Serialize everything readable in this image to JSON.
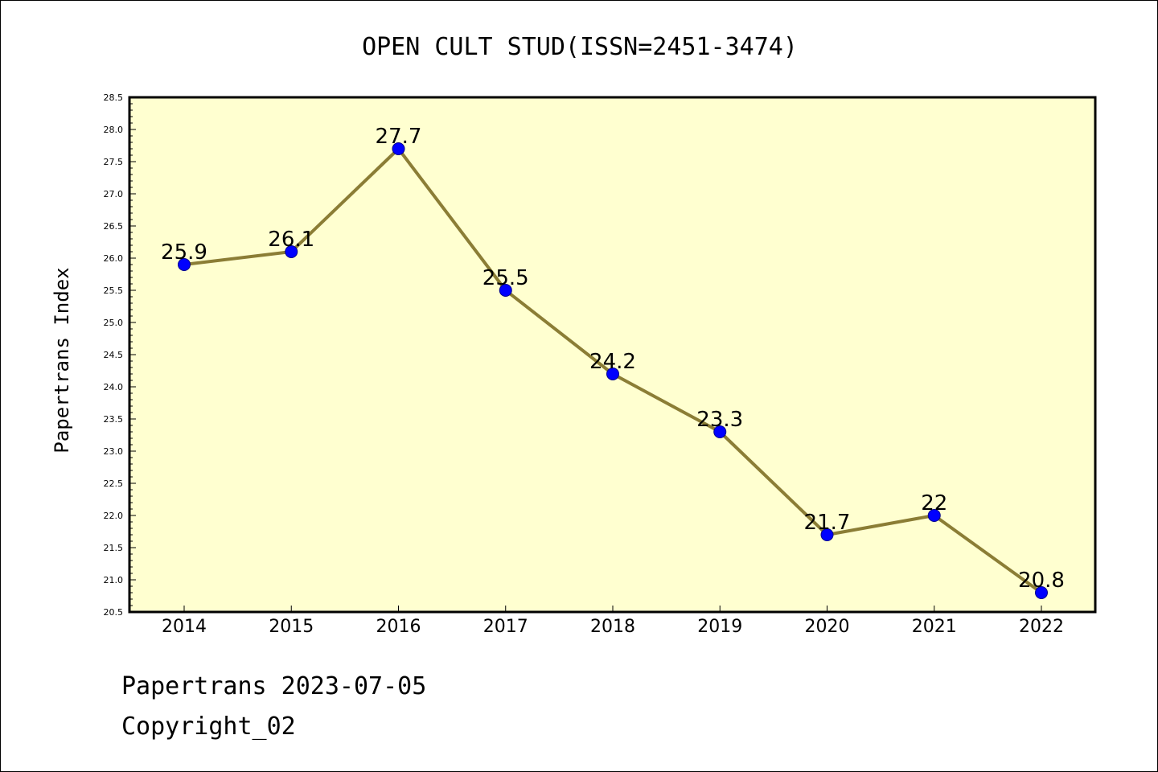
{
  "chart_data": {
    "type": "line",
    "title": "OPEN CULT STUD(ISSN=2451-3474)",
    "xlabel": "",
    "ylabel": "Papertrans Index",
    "categories": [
      "2014",
      "2015",
      "2016",
      "2017",
      "2018",
      "2019",
      "2020",
      "2021",
      "2022"
    ],
    "series": [
      {
        "values": [
          25.9,
          26.1,
          27.7,
          25.5,
          24.2,
          23.3,
          21.7,
          22.0,
          20.8
        ],
        "labels": [
          "25.9",
          "26.1",
          "27.7",
          "25.5",
          "24.2",
          "23.3",
          "21.7",
          "22",
          "20.8"
        ]
      }
    ],
    "ylim": [
      20.5,
      28.5
    ],
    "yticks": [
      "20.5",
      "21.0",
      "21.5",
      "22.0",
      "22.5",
      "23.0",
      "23.5",
      "24.0",
      "24.5",
      "25.0",
      "25.5",
      "26.0",
      "26.5",
      "27.0",
      "27.5",
      "28.0",
      "28.5"
    ],
    "grid": false,
    "colors": {
      "plot_background": "#ffffd0",
      "line": "#8b7d35",
      "marker": "#0000ff",
      "marker_edge": "#00008b",
      "frame": "#000000"
    }
  },
  "footer": {
    "line1": "Papertrans 2023-07-05",
    "line2": "Copyright_02"
  }
}
